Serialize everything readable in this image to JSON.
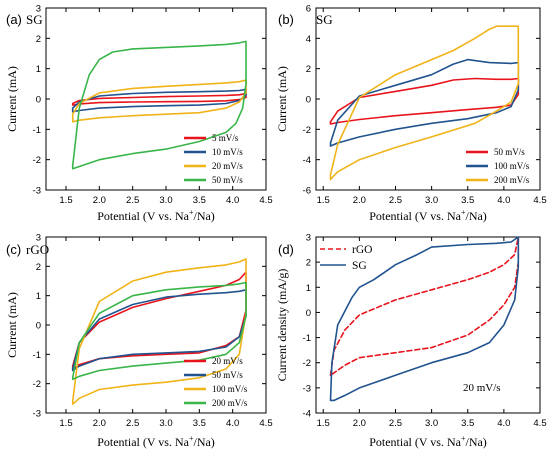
{
  "chart_data": [
    {
      "type": "line",
      "panel_letter": "(a)",
      "title": "SG",
      "xlabel": "Potential (V vs. Na+/Na)",
      "ylabel": "Current (mA)",
      "xlim": [
        1.2,
        4.5
      ],
      "ylim": [
        -3,
        3
      ],
      "xticks": [
        1.5,
        2.0,
        2.5,
        3.0,
        3.5,
        4.0,
        4.5
      ],
      "yticks": [
        -3,
        -2,
        -1,
        0,
        1,
        2,
        3
      ],
      "legend_position": "bottom-right",
      "series": [
        {
          "name": "5 mV/s",
          "color": "#e8141c",
          "x": [
            1.6,
            1.7,
            2.0,
            2.5,
            3.0,
            3.5,
            3.9,
            4.1,
            4.2,
            4.2,
            4.1,
            3.9,
            3.5,
            3.0,
            2.5,
            2.0,
            1.7,
            1.6,
            1.6
          ],
          "y": [
            -0.15,
            -0.05,
            0.02,
            0.05,
            0.08,
            0.1,
            0.12,
            0.14,
            0.18,
            0.05,
            -0.02,
            -0.06,
            -0.08,
            -0.09,
            -0.1,
            -0.12,
            -0.16,
            -0.2,
            -0.15
          ]
        },
        {
          "name": "10 mV/s",
          "color": "#21538f",
          "x": [
            1.6,
            1.7,
            2.0,
            2.5,
            3.0,
            3.5,
            3.9,
            4.1,
            4.2,
            4.2,
            4.1,
            3.9,
            3.5,
            3.0,
            2.5,
            2.0,
            1.7,
            1.6,
            1.6
          ],
          "y": [
            -0.3,
            -0.1,
            0.1,
            0.18,
            0.22,
            0.24,
            0.26,
            0.28,
            0.32,
            0.12,
            -0.05,
            -0.15,
            -0.2,
            -0.22,
            -0.25,
            -0.3,
            -0.38,
            -0.42,
            -0.3
          ]
        },
        {
          "name": "20 mV/s",
          "color": "#f0b419",
          "x": [
            1.6,
            1.7,
            2.0,
            2.5,
            3.0,
            3.5,
            3.9,
            4.1,
            4.2,
            4.2,
            4.1,
            3.9,
            3.5,
            3.0,
            2.5,
            2.0,
            1.7,
            1.6,
            1.6
          ],
          "y": [
            -0.5,
            -0.15,
            0.2,
            0.35,
            0.42,
            0.48,
            0.53,
            0.57,
            0.62,
            0.2,
            -0.1,
            -0.3,
            -0.45,
            -0.5,
            -0.55,
            -0.62,
            -0.7,
            -0.75,
            -0.5
          ]
        },
        {
          "name": "50 mV/s",
          "color": "#39b54a",
          "x": [
            1.6,
            1.7,
            1.85,
            2.0,
            2.2,
            2.5,
            3.0,
            3.5,
            3.9,
            4.1,
            4.2,
            4.2,
            4.15,
            4.05,
            3.9,
            3.5,
            3.0,
            2.5,
            2.0,
            1.8,
            1.6,
            1.6
          ],
          "y": [
            -2.2,
            -0.3,
            0.8,
            1.3,
            1.55,
            1.65,
            1.7,
            1.75,
            1.8,
            1.85,
            1.9,
            0.5,
            -0.3,
            -0.8,
            -1.1,
            -1.4,
            -1.65,
            -1.8,
            -2.0,
            -2.15,
            -2.3,
            -2.2
          ]
        }
      ]
    },
    {
      "type": "line",
      "panel_letter": "(b)",
      "title": "SG",
      "xlabel": "Potential (V vs. Na+/Na)",
      "ylabel": "Current (mA)",
      "xlim": [
        1.4,
        4.5
      ],
      "ylim": [
        -6,
        6
      ],
      "xticks": [
        1.5,
        2.0,
        2.5,
        3.0,
        3.5,
        4.0,
        4.5
      ],
      "yticks": [
        -6,
        -4,
        -2,
        0,
        2,
        4,
        6
      ],
      "legend_position": "bottom-right",
      "series": [
        {
          "name": "50 mV/s",
          "color": "#e8141c",
          "x": [
            1.6,
            1.7,
            2.0,
            2.5,
            3.0,
            3.3,
            3.6,
            3.9,
            4.1,
            4.2,
            4.2,
            4.1,
            3.9,
            3.5,
            3.0,
            2.5,
            2.0,
            1.7,
            1.6,
            1.6
          ],
          "y": [
            -1.5,
            -0.8,
            0.1,
            0.5,
            0.9,
            1.25,
            1.35,
            1.3,
            1.3,
            1.35,
            0.3,
            -0.4,
            -0.55,
            -0.7,
            -0.9,
            -1.1,
            -1.35,
            -1.55,
            -1.65,
            -1.5
          ]
        },
        {
          "name": "100 mV/s",
          "color": "#21538f",
          "x": [
            1.6,
            1.7,
            2.0,
            2.5,
            3.0,
            3.3,
            3.5,
            3.8,
            4.1,
            4.2,
            4.2,
            4.1,
            3.9,
            3.5,
            3.0,
            2.5,
            2.0,
            1.7,
            1.6,
            1.6
          ],
          "y": [
            -2.9,
            -1.4,
            0.2,
            0.9,
            1.6,
            2.3,
            2.6,
            2.4,
            2.35,
            2.4,
            0.6,
            -0.5,
            -0.9,
            -1.3,
            -1.6,
            -2.0,
            -2.5,
            -2.9,
            -3.1,
            -2.9
          ]
        },
        {
          "name": "200 mV/s",
          "color": "#f0b419",
          "x": [
            1.6,
            1.7,
            2.0,
            2.5,
            3.0,
            3.3,
            3.6,
            3.8,
            3.9,
            4.1,
            4.2,
            4.2,
            4.1,
            3.9,
            3.6,
            3.0,
            2.5,
            2.0,
            1.7,
            1.6,
            1.6
          ],
          "y": [
            -5.0,
            -3.0,
            0.1,
            1.6,
            2.6,
            3.2,
            4.0,
            4.6,
            4.8,
            4.8,
            4.8,
            1.0,
            -0.2,
            -0.8,
            -1.6,
            -2.5,
            -3.2,
            -4.0,
            -4.8,
            -5.3,
            -5.0
          ]
        }
      ]
    },
    {
      "type": "line",
      "panel_letter": "(c)",
      "title": "rGO",
      "xlabel": "Potential (V vs. Na+/Na)",
      "ylabel": "Current (mA)",
      "xlim": [
        1.2,
        4.5
      ],
      "ylim": [
        -3,
        3
      ],
      "xticks": [
        1.5,
        2.0,
        2.5,
        3.0,
        3.5,
        4.0,
        4.5
      ],
      "yticks": [
        -3,
        -2,
        -1,
        0,
        1,
        2,
        3
      ],
      "legend_position": "bottom-right",
      "series": [
        {
          "name": "20 mV/s",
          "color": "#e8141c",
          "x": [
            1.6,
            1.7,
            2.0,
            2.5,
            3.0,
            3.5,
            3.9,
            4.1,
            4.2,
            4.2,
            4.1,
            3.9,
            3.5,
            3.0,
            2.5,
            2.0,
            1.7,
            1.6,
            1.6
          ],
          "y": [
            -1.4,
            -0.6,
            0.1,
            0.6,
            0.9,
            1.15,
            1.35,
            1.55,
            1.8,
            0.5,
            -0.4,
            -0.7,
            -0.95,
            -1.0,
            -1.05,
            -1.15,
            -1.35,
            -1.5,
            -1.4
          ]
        },
        {
          "name": "50 mV/s",
          "color": "#21538f",
          "x": [
            1.6,
            1.7,
            2.0,
            2.5,
            3.0,
            3.5,
            3.9,
            4.1,
            4.2,
            4.2,
            4.1,
            3.9,
            3.5,
            3.0,
            2.5,
            2.0,
            1.7,
            1.6,
            1.6
          ],
          "y": [
            -1.5,
            -0.6,
            0.2,
            0.7,
            0.95,
            1.05,
            1.1,
            1.15,
            1.2,
            0.3,
            -0.4,
            -0.75,
            -0.9,
            -0.95,
            -1.0,
            -1.15,
            -1.4,
            -1.55,
            -1.5
          ]
        },
        {
          "name": "100 mV/s",
          "color": "#f0b419",
          "x": [
            1.6,
            1.7,
            2.0,
            2.5,
            3.0,
            3.5,
            3.9,
            4.1,
            4.2,
            4.2,
            4.1,
            3.9,
            3.5,
            3.0,
            2.5,
            2.0,
            1.7,
            1.6,
            1.6
          ],
          "y": [
            -2.6,
            -0.8,
            0.8,
            1.5,
            1.8,
            1.95,
            2.05,
            2.15,
            2.25,
            0.4,
            -1.0,
            -1.5,
            -1.8,
            -1.95,
            -2.05,
            -2.2,
            -2.5,
            -2.7,
            -2.6
          ]
        },
        {
          "name": "200 mV/s",
          "color": "#39b54a",
          "x": [
            1.6,
            1.7,
            2.0,
            2.5,
            3.0,
            3.5,
            3.9,
            4.1,
            4.2,
            4.2,
            4.1,
            3.9,
            3.5,
            3.0,
            2.5,
            2.0,
            1.7,
            1.6,
            1.6
          ],
          "y": [
            -1.8,
            -0.6,
            0.4,
            1.0,
            1.2,
            1.3,
            1.35,
            1.4,
            1.45,
            0.3,
            -0.6,
            -1.0,
            -1.2,
            -1.3,
            -1.4,
            -1.55,
            -1.75,
            -1.85,
            -1.8
          ]
        }
      ]
    },
    {
      "type": "line",
      "panel_letter": "(d)",
      "title": "",
      "annotation": "20 mV/s",
      "xlabel": "Potential (V vs. Na+/Na)",
      "ylabel": "Current density (mA/g)",
      "xlim": [
        1.4,
        4.5
      ],
      "ylim": [
        -4,
        3
      ],
      "xticks": [
        1.5,
        2.0,
        2.5,
        3.0,
        3.5,
        4.0,
        4.5
      ],
      "yticks": [
        -4,
        -3,
        -2,
        -1,
        0,
        1,
        2,
        3
      ],
      "legend_position": "top-left",
      "series": [
        {
          "name": "rGO",
          "color": "#e8141c",
          "dashed": true,
          "x": [
            1.6,
            1.65,
            1.8,
            2.0,
            2.5,
            3.0,
            3.5,
            3.8,
            4.0,
            4.15,
            4.2,
            4.2,
            4.15,
            4.0,
            3.8,
            3.5,
            3.0,
            2.5,
            2.0,
            1.8,
            1.65,
            1.6
          ],
          "y": [
            -2.5,
            -1.5,
            -0.7,
            -0.1,
            0.5,
            0.9,
            1.3,
            1.6,
            1.9,
            2.3,
            3.0,
            2.0,
            1.0,
            0.3,
            -0.3,
            -0.9,
            -1.4,
            -1.6,
            -1.8,
            -2.1,
            -2.4,
            -2.5
          ]
        },
        {
          "name": "SG",
          "color": "#21538f",
          "dashed": false,
          "x": [
            1.6,
            1.62,
            1.7,
            1.9,
            2.0,
            2.2,
            2.5,
            2.8,
            3.0,
            3.5,
            3.9,
            4.1,
            4.2,
            4.2,
            4.15,
            4.0,
            3.8,
            3.5,
            3.0,
            2.5,
            2.0,
            1.8,
            1.65,
            1.6
          ],
          "y": [
            -3.5,
            -2.0,
            -0.5,
            0.6,
            1.0,
            1.3,
            1.9,
            2.3,
            2.6,
            2.7,
            2.75,
            2.8,
            3.0,
            1.8,
            0.5,
            -0.5,
            -1.2,
            -1.6,
            -2.0,
            -2.5,
            -3.0,
            -3.3,
            -3.5,
            -3.5
          ]
        }
      ]
    }
  ]
}
